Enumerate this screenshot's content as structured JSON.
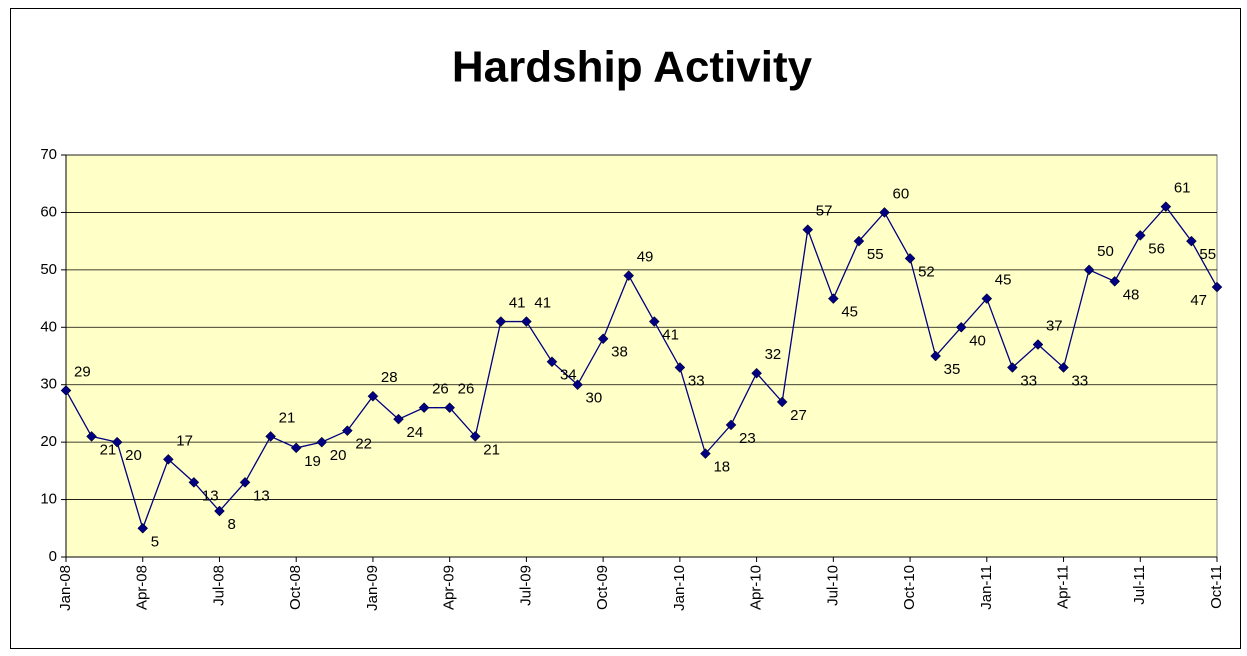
{
  "chart_data": {
    "type": "line",
    "title": "Hardship Activity",
    "categories": [
      "Jan-08",
      null,
      null,
      "Apr-08",
      null,
      null,
      "Jul-08",
      null,
      null,
      "Oct-08",
      null,
      null,
      "Jan-09",
      null,
      null,
      "Apr-09",
      null,
      null,
      "Jul-09",
      null,
      null,
      "Oct-09",
      null,
      null,
      "Jan-10",
      null,
      null,
      "Apr-10",
      null,
      null,
      "Jul-10",
      null,
      null,
      "Oct-10",
      null,
      null,
      "Jan-11",
      null,
      null,
      "Apr-11",
      null,
      null,
      "Jul-11",
      null,
      null,
      "Oct-11"
    ],
    "values": [
      29,
      21,
      20,
      5,
      17,
      13,
      8,
      13,
      21,
      19,
      20,
      22,
      28,
      24,
      26,
      26,
      21,
      41,
      41,
      34,
      30,
      38,
      49,
      41,
      33,
      18,
      23,
      32,
      27,
      57,
      45,
      55,
      60,
      52,
      35,
      40,
      45,
      33,
      37,
      33,
      50,
      48,
      56,
      61,
      55,
      47
    ],
    "color": "#000080",
    "ylim": [
      0,
      70
    ],
    "yticks": [
      0,
      10,
      20,
      30,
      40,
      50,
      60,
      70
    ],
    "grid": true,
    "plot_background": "#ffffc8"
  }
}
